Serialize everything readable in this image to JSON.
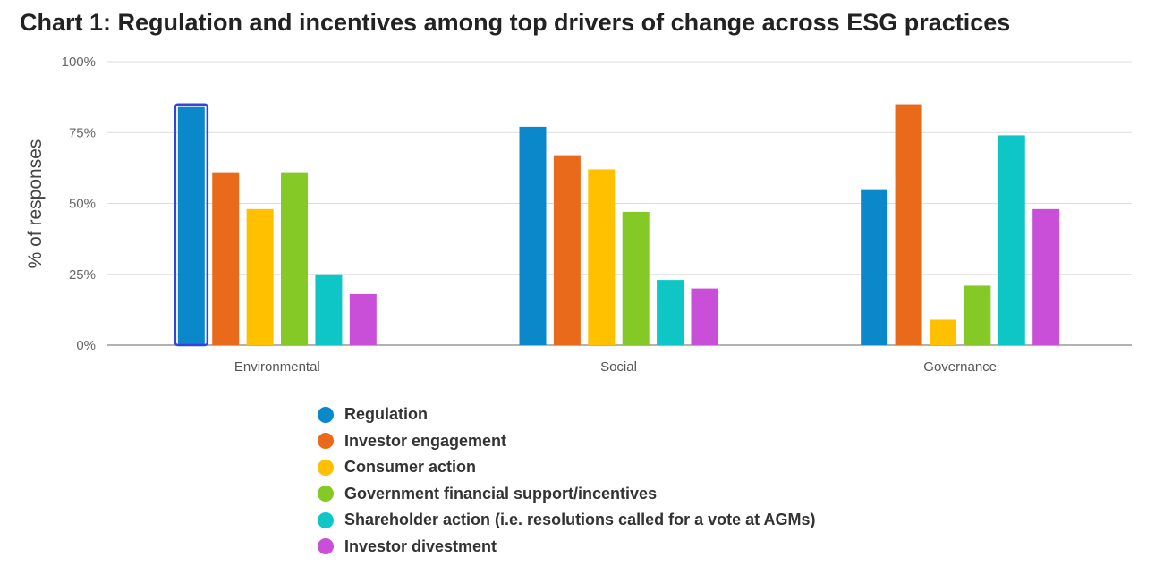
{
  "chart_data": {
    "type": "bar",
    "title": "Chart 1: Regulation and incentives among top drivers of change across ESG practices",
    "ylabel": "% of responses",
    "xlabel": "",
    "ylim": [
      0,
      100
    ],
    "yticks": [
      "0%",
      "25%",
      "50%",
      "75%",
      "100%"
    ],
    "ytick_values": [
      0,
      25,
      50,
      75,
      100
    ],
    "categories": [
      "Environmental",
      "Social",
      "Governance"
    ],
    "grid": true,
    "legend_position": "bottom",
    "series": [
      {
        "name": "Regulation",
        "color": "#0a88c9",
        "values": [
          84,
          77,
          55
        ]
      },
      {
        "name": "Investor engagement",
        "color": "#ea6a1c",
        "values": [
          61,
          67,
          85
        ]
      },
      {
        "name": "Consumer action",
        "color": "#ffc000",
        "values": [
          48,
          62,
          9
        ]
      },
      {
        "name": "Government financial support/incentives",
        "color": "#84c925",
        "values": [
          61,
          47,
          21
        ]
      },
      {
        "name": "Shareholder action (i.e. resolutions called for a vote at AGMs)",
        "color": "#0fc6c6",
        "values": [
          25,
          23,
          74
        ]
      },
      {
        "name": "Investor divestment",
        "color": "#c94fd8",
        "values": [
          18,
          20,
          48
        ]
      }
    ],
    "highlight": {
      "series": "Regulation",
      "category": "Environmental",
      "color": "#3344dd"
    }
  }
}
